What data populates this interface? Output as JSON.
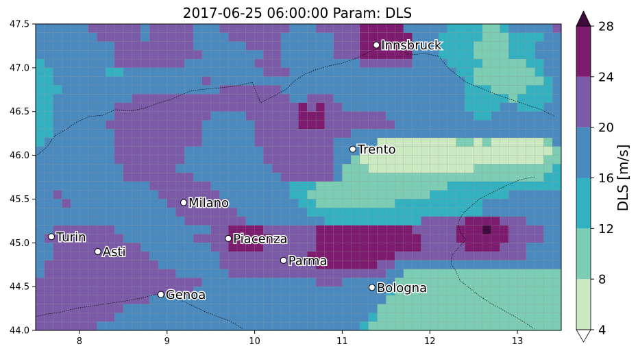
{
  "chart_data": {
    "type": "heatmap",
    "title": "2017-06-25 06:00:00 Param: DLS",
    "xlim": [
      7.5,
      13.5
    ],
    "ylim": [
      44.0,
      47.5
    ],
    "x_ticks": [
      8,
      9,
      10,
      11,
      12,
      13
    ],
    "y_ticks": [
      44.0,
      44.5,
      45.0,
      45.5,
      46.0,
      46.5,
      47.0,
      47.5
    ],
    "colorbar": {
      "label": "DLS  [m/s]",
      "levels": [
        4,
        8,
        12,
        16,
        20,
        24,
        28
      ],
      "colors": [
        "#cbe9c0",
        "#7ccdb3",
        "#34b1c1",
        "#4a8abf",
        "#7b5aa7",
        "#7d1b6e"
      ],
      "under_color": "#ffffff",
      "over_color": "#3f0a3e",
      "extend": "both"
    },
    "cities": [
      {
        "name": "Innsbruck",
        "lon": 11.39,
        "lat": 47.26
      },
      {
        "name": "Trento",
        "lon": 11.12,
        "lat": 46.07
      },
      {
        "name": "Milano",
        "lon": 9.19,
        "lat": 45.46
      },
      {
        "name": "Turin",
        "lon": 7.68,
        "lat": 45.07
      },
      {
        "name": "Asti",
        "lon": 8.21,
        "lat": 44.9
      },
      {
        "name": "Piacenza",
        "lon": 9.7,
        "lat": 45.05
      },
      {
        "name": "Parma",
        "lon": 10.33,
        "lat": 44.8
      },
      {
        "name": "Genoa",
        "lon": 8.93,
        "lat": 44.41
      },
      {
        "name": "Bologna",
        "lon": 11.34,
        "lat": 44.49
      }
    ],
    "grid": {
      "lon0": 7.5,
      "lat0": 44.0,
      "dlon": 0.1,
      "dlat": 0.1,
      "ncols": 60,
      "nrows": 35,
      "row_order": "north_to_south",
      "class_key": "0=4-8, 1=8-12, 2=12-16, 3=16-20, 4=20-24, 5=24-28, 6=>28",
      "rows": [
        "333333444444344444333444444443334444455555333332222112333334",
        "333333344444344444333344444433333344455555533322222111222233",
        "333333333444444444333333444433333344455555533322221111222333",
        "333333333444444444433333334433333344455555533322221111222333",
        "233333333444444443333333344433333333344444433332222111112233",
        "223333332233333333333333334443333333333333333333221111111233",
        "223333333333333333343333333333333333333333333333321111111123",
        "222333333333333333333444444433333333333333333333322211112223",
        "223333333334444444444444444443344433333333333333322222122223",
        "223333333444444444444444444444545443333333333333322223322233",
        "223333333444444444443333444444555444444433333333332233333333",
        "223333334444444444433333344444555444444443333333333333333333",
        "223333333444444444433333344444444444333333333333333333333333",
        "233333333444444444433333344444444433333000000000110100000013",
        "333333333444444443333333334444444433300000000000000000000001",
        "333333333444444443333333334444444433100000000000000000000011",
        "333333333344444433333333333444444431110000000000001111111112",
        "333333333344444444333333333344444431111111111111111111111122",
        "333333333333344444443333333332221111111111111112222222222222",
        "334333333333334444444333333332211111111111111222222222333333",
        "333433333333333444444433333333221111111112222222222333333333",
        "333333333333333344444443333333322222222222222222222333333333",
        "333333333333333334444444333333333222222222224444455554443333",
        "334444444333333333334455554444445555555555544444555655444433",
        "344444444433333333444455555444445555555555554444555555444433",
        "334444444444333333334455554444445555555555554444455554443333",
        "334444444444433333333444444444455555555554444444444444443333",
        "344444444444443333333444444444445555555443333333333333333333",
        "344444444444444433333344444444444444444433111111111111111111",
        "444444444444444444433333333333334443333331111111111111111111",
        "444444444444444444333333333333333333333321111111111111111111",
        "444444444444433333333333333333333333333311111111111111111111",
        "444444444433333333333333333333333333333111111111111111111111",
        "444444444333333333333333333333333333332111111111111111111111",
        "444444433333333333333333333333333333321111111111111111111111"
      ]
    }
  }
}
